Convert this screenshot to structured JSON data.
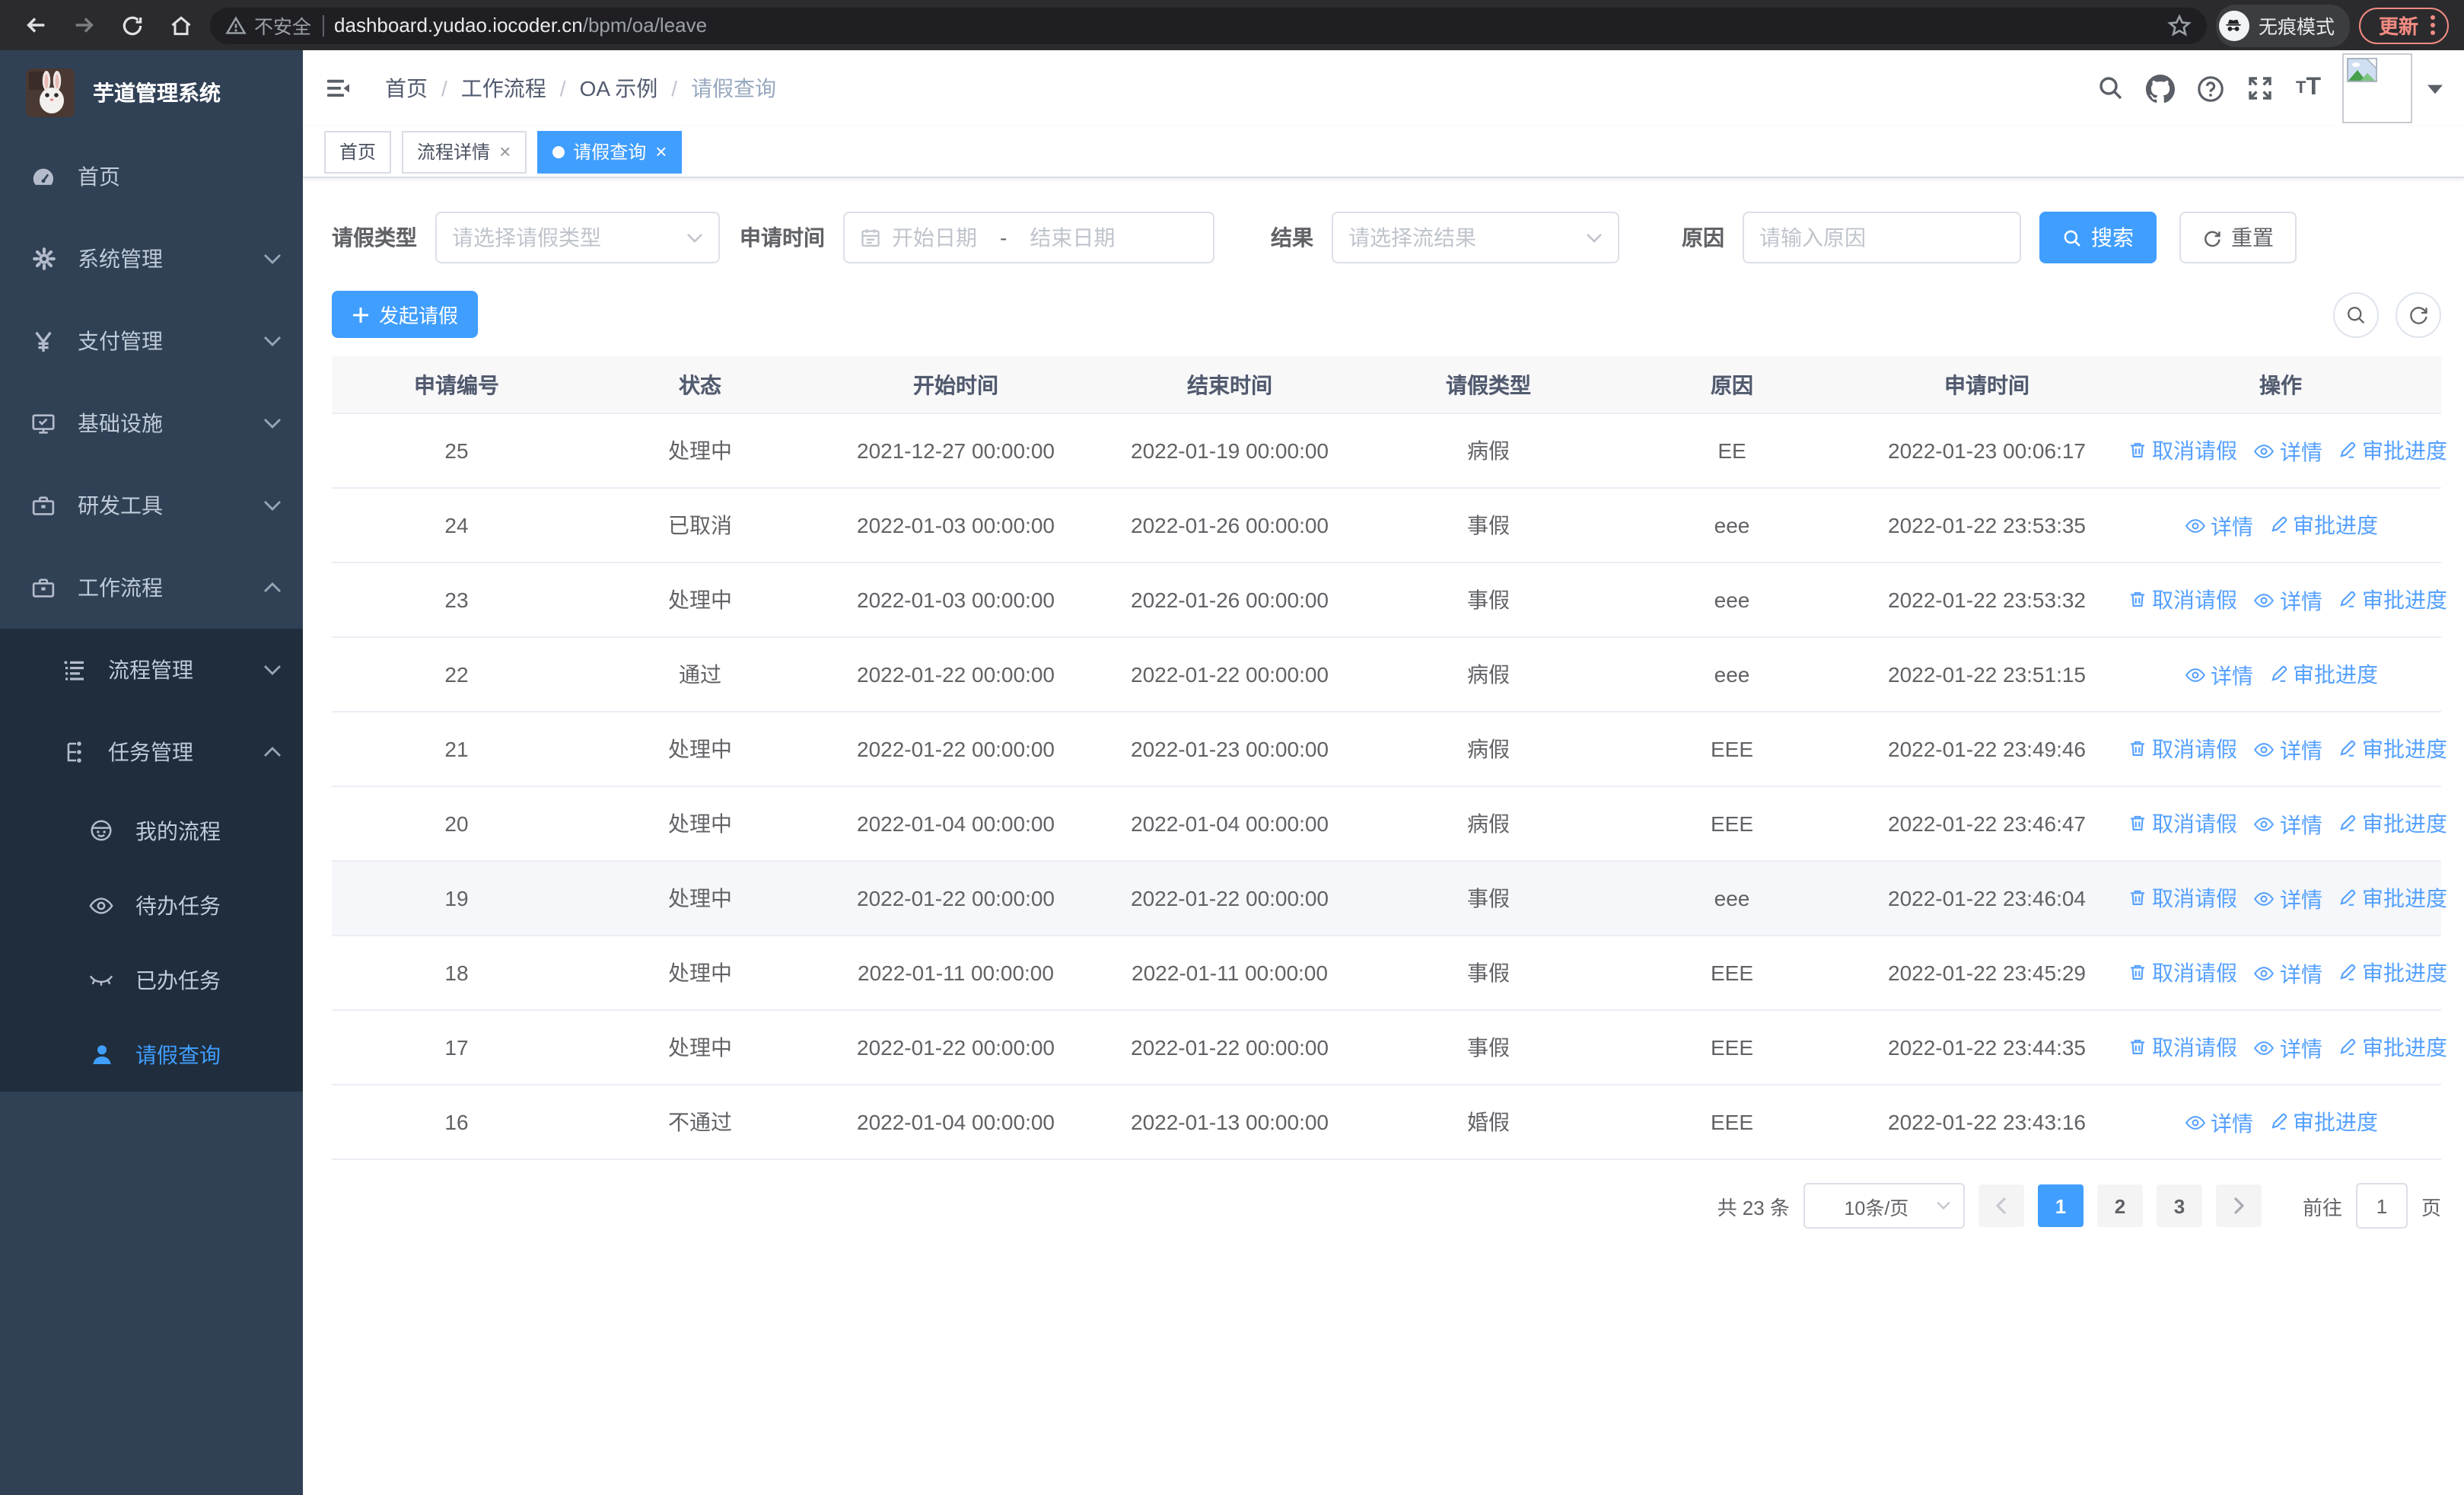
{
  "browser": {
    "security_label": "不安全",
    "url_host": "dashboard.yudao.iocoder.cn",
    "url_path": "/bpm/oa/leave",
    "incognito_label": "无痕模式",
    "update_label": "更新"
  },
  "sidebar": {
    "title": "芋道管理系统",
    "logo_icon": "bunny-logo",
    "items": [
      {
        "label": "首页",
        "icon": "gauge-icon",
        "level": 1
      },
      {
        "label": "系统管理",
        "icon": "gear-icon",
        "level": 1,
        "chevron": "down"
      },
      {
        "label": "支付管理",
        "icon": "yen-icon",
        "level": 1,
        "chevron": "down"
      },
      {
        "label": "基础设施",
        "icon": "monitor-icon",
        "level": 1,
        "chevron": "down"
      },
      {
        "label": "研发工具",
        "icon": "toolbox-icon",
        "level": 1,
        "chevron": "down"
      },
      {
        "label": "工作流程",
        "icon": "toolbox-icon",
        "level": 1,
        "chevron": "up"
      },
      {
        "label": "流程管理",
        "icon": "list-icon",
        "level": 2,
        "chevron": "down",
        "submenu": true
      },
      {
        "label": "任务管理",
        "icon": "flow-icon",
        "level": 2,
        "chevron": "up",
        "submenu": true
      },
      {
        "label": "我的流程",
        "icon": "robot-icon",
        "level": 3,
        "submenu": true
      },
      {
        "label": "待办任务",
        "icon": "eye-icon",
        "level": 3,
        "submenu": true
      },
      {
        "label": "已办任务",
        "icon": "eye-closed-icon",
        "level": 3,
        "submenu": true
      },
      {
        "label": "请假查询",
        "icon": "person-icon",
        "level": 3,
        "submenu": true,
        "active": true
      }
    ]
  },
  "navbar": {
    "breadcrumb": [
      "首页",
      "工作流程",
      "OA 示例",
      "请假查询"
    ]
  },
  "tabs": [
    {
      "label": "首页",
      "closable": false,
      "active": false
    },
    {
      "label": "流程详情",
      "closable": true,
      "active": false
    },
    {
      "label": "请假查询",
      "closable": true,
      "active": true
    }
  ],
  "filters": {
    "leave_type_label": "请假类型",
    "leave_type_placeholder": "请选择请假类型",
    "apply_time_label": "申请时间",
    "start_date_placeholder": "开始日期",
    "range_separator": "-",
    "end_date_placeholder": "结束日期",
    "result_label": "结果",
    "result_placeholder": "请选择流结果",
    "reason_label": "原因",
    "reason_placeholder": "请输入原因",
    "search_label": "搜索",
    "reset_label": "重置"
  },
  "toolbar": {
    "create_label": "发起请假"
  },
  "table": {
    "columns": [
      "申请编号",
      "状态",
      "开始时间",
      "结束时间",
      "请假类型",
      "原因",
      "申请时间",
      "操作"
    ],
    "column_keys": [
      "id",
      "status",
      "start",
      "end",
      "type",
      "reason",
      "applied"
    ],
    "rows": [
      {
        "id": "25",
        "status": "处理中",
        "start": "2021-12-27 00:00:00",
        "end": "2022-01-19 00:00:00",
        "type": "病假",
        "reason": "EE",
        "applied": "2022-01-23 00:06:17",
        "hover": false,
        "actions": [
          {
            "key": "cancel",
            "label": "取消请假"
          },
          {
            "key": "detail",
            "label": "详情"
          },
          {
            "key": "progress",
            "label": "审批进度"
          }
        ]
      },
      {
        "id": "24",
        "status": "已取消",
        "start": "2022-01-03 00:00:00",
        "end": "2022-01-26 00:00:00",
        "type": "事假",
        "reason": "eee",
        "applied": "2022-01-22 23:53:35",
        "hover": false,
        "actions": [
          {
            "key": "detail",
            "label": "详情"
          },
          {
            "key": "progress",
            "label": "审批进度"
          }
        ]
      },
      {
        "id": "23",
        "status": "处理中",
        "start": "2022-01-03 00:00:00",
        "end": "2022-01-26 00:00:00",
        "type": "事假",
        "reason": "eee",
        "applied": "2022-01-22 23:53:32",
        "hover": false,
        "actions": [
          {
            "key": "cancel",
            "label": "取消请假"
          },
          {
            "key": "detail",
            "label": "详情"
          },
          {
            "key": "progress",
            "label": "审批进度"
          }
        ]
      },
      {
        "id": "22",
        "status": "通过",
        "start": "2022-01-22 00:00:00",
        "end": "2022-01-22 00:00:00",
        "type": "病假",
        "reason": "eee",
        "applied": "2022-01-22 23:51:15",
        "hover": false,
        "actions": [
          {
            "key": "detail",
            "label": "详情"
          },
          {
            "key": "progress",
            "label": "审批进度"
          }
        ]
      },
      {
        "id": "21",
        "status": "处理中",
        "start": "2022-01-22 00:00:00",
        "end": "2022-01-23 00:00:00",
        "type": "病假",
        "reason": "EEE",
        "applied": "2022-01-22 23:49:46",
        "hover": false,
        "actions": [
          {
            "key": "cancel",
            "label": "取消请假"
          },
          {
            "key": "detail",
            "label": "详情"
          },
          {
            "key": "progress",
            "label": "审批进度"
          }
        ]
      },
      {
        "id": "20",
        "status": "处理中",
        "start": "2022-01-04 00:00:00",
        "end": "2022-01-04 00:00:00",
        "type": "病假",
        "reason": "EEE",
        "applied": "2022-01-22 23:46:47",
        "hover": false,
        "actions": [
          {
            "key": "cancel",
            "label": "取消请假"
          },
          {
            "key": "detail",
            "label": "详情"
          },
          {
            "key": "progress",
            "label": "审批进度"
          }
        ]
      },
      {
        "id": "19",
        "status": "处理中",
        "start": "2022-01-22 00:00:00",
        "end": "2022-01-22 00:00:00",
        "type": "事假",
        "reason": "eee",
        "applied": "2022-01-22 23:46:04",
        "hover": true,
        "actions": [
          {
            "key": "cancel",
            "label": "取消请假"
          },
          {
            "key": "detail",
            "label": "详情"
          },
          {
            "key": "progress",
            "label": "审批进度"
          }
        ]
      },
      {
        "id": "18",
        "status": "处理中",
        "start": "2022-01-11 00:00:00",
        "end": "2022-01-11 00:00:00",
        "type": "事假",
        "reason": "EEE",
        "applied": "2022-01-22 23:45:29",
        "hover": false,
        "actions": [
          {
            "key": "cancel",
            "label": "取消请假"
          },
          {
            "key": "detail",
            "label": "详情"
          },
          {
            "key": "progress",
            "label": "审批进度"
          }
        ]
      },
      {
        "id": "17",
        "status": "处理中",
        "start": "2022-01-22 00:00:00",
        "end": "2022-01-22 00:00:00",
        "type": "事假",
        "reason": "EEE",
        "applied": "2022-01-22 23:44:35",
        "hover": false,
        "actions": [
          {
            "key": "cancel",
            "label": "取消请假"
          },
          {
            "key": "detail",
            "label": "详情"
          },
          {
            "key": "progress",
            "label": "审批进度"
          }
        ]
      },
      {
        "id": "16",
        "status": "不通过",
        "start": "2022-01-04 00:00:00",
        "end": "2022-01-13 00:00:00",
        "type": "婚假",
        "reason": "EEE",
        "applied": "2022-01-22 23:43:16",
        "hover": false,
        "actions": [
          {
            "key": "detail",
            "label": "详情"
          },
          {
            "key": "progress",
            "label": "审批进度"
          }
        ]
      }
    ]
  },
  "pagination": {
    "total_text": "共 23 条",
    "page_size": "10条/页",
    "pages": [
      "1",
      "2",
      "3"
    ],
    "active_page": "1",
    "prev_icon": "chevron-left-icon",
    "next_icon": "chevron-right-icon",
    "goto_label": "前往",
    "goto_value": "1",
    "page_suffix": "页"
  },
  "colors": {
    "primary": "#409EFF",
    "link": "#54a0ff",
    "sidebar_bg": "#304156",
    "submenu_bg": "#1f2d3d",
    "update_accent": "#f28b82"
  }
}
